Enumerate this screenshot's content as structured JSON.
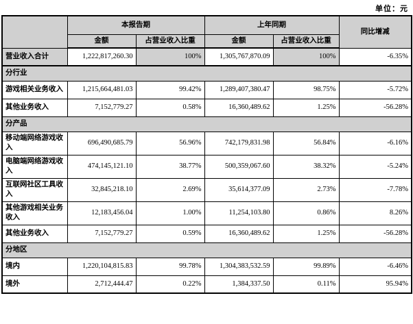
{
  "unit_label": "单位：元",
  "colors": {
    "header_bg": "#d0d0d0",
    "border": "#000000",
    "page_bg": "#ffffff"
  },
  "table": {
    "header": {
      "current_period": "本报告期",
      "prior_period": "上年同期",
      "yoy": "同比增减",
      "amount": "金额",
      "pct_of_revenue": "占营业收入比重"
    },
    "rows": [
      {
        "type": "data",
        "highlight": true,
        "label": "营业收入合计",
        "cur_amount": "1,222,817,260.30",
        "cur_pct": "100%",
        "prev_amount": "1,305,767,870.09",
        "prev_pct": "100%",
        "yoy": "-6.35%"
      },
      {
        "type": "section",
        "label": "分行业"
      },
      {
        "type": "data",
        "label": "游戏相关业务收入",
        "cur_amount": "1,215,664,481.03",
        "cur_pct": "99.42%",
        "prev_amount": "1,289,407,380.47",
        "prev_pct": "98.75%",
        "yoy": "-5.72%"
      },
      {
        "type": "data",
        "label": "其他业务收入",
        "cur_amount": "7,152,779.27",
        "cur_pct": "0.58%",
        "prev_amount": "16,360,489.62",
        "prev_pct": "1.25%",
        "yoy": "-56.28%"
      },
      {
        "type": "section",
        "label": "分产品"
      },
      {
        "type": "data",
        "label": "移动端网络游戏收入",
        "cur_amount": "696,490,685.79",
        "cur_pct": "56.96%",
        "prev_amount": "742,179,831.98",
        "prev_pct": "56.84%",
        "yoy": "-6.16%"
      },
      {
        "type": "data",
        "label": "电脑端网络游戏收入",
        "cur_amount": "474,145,121.10",
        "cur_pct": "38.77%",
        "prev_amount": "500,359,067.60",
        "prev_pct": "38.32%",
        "yoy": "-5.24%"
      },
      {
        "type": "data",
        "label": "互联网社区工具收入",
        "cur_amount": "32,845,218.10",
        "cur_pct": "2.69%",
        "prev_amount": "35,614,377.09",
        "prev_pct": "2.73%",
        "yoy": "-7.78%"
      },
      {
        "type": "data",
        "label": "其他游戏相关业务收入",
        "cur_amount": "12,183,456.04",
        "cur_pct": "1.00%",
        "prev_amount": "11,254,103.80",
        "prev_pct": "0.86%",
        "yoy": "8.26%"
      },
      {
        "type": "data",
        "label": "其他业务收入",
        "cur_amount": "7,152,779.27",
        "cur_pct": "0.59%",
        "prev_amount": "16,360,489.62",
        "prev_pct": "1.25%",
        "yoy": "-56.28%"
      },
      {
        "type": "section",
        "label": "分地区"
      },
      {
        "type": "data",
        "label": "境内",
        "cur_amount": "1,220,104,815.83",
        "cur_pct": "99.78%",
        "prev_amount": "1,304,383,532.59",
        "prev_pct": "99.89%",
        "yoy": "-6.46%"
      },
      {
        "type": "data",
        "label": "境外",
        "cur_amount": "2,712,444.47",
        "cur_pct": "0.22%",
        "prev_amount": "1,384,337.50",
        "prev_pct": "0.11%",
        "yoy": "95.94%"
      }
    ]
  }
}
